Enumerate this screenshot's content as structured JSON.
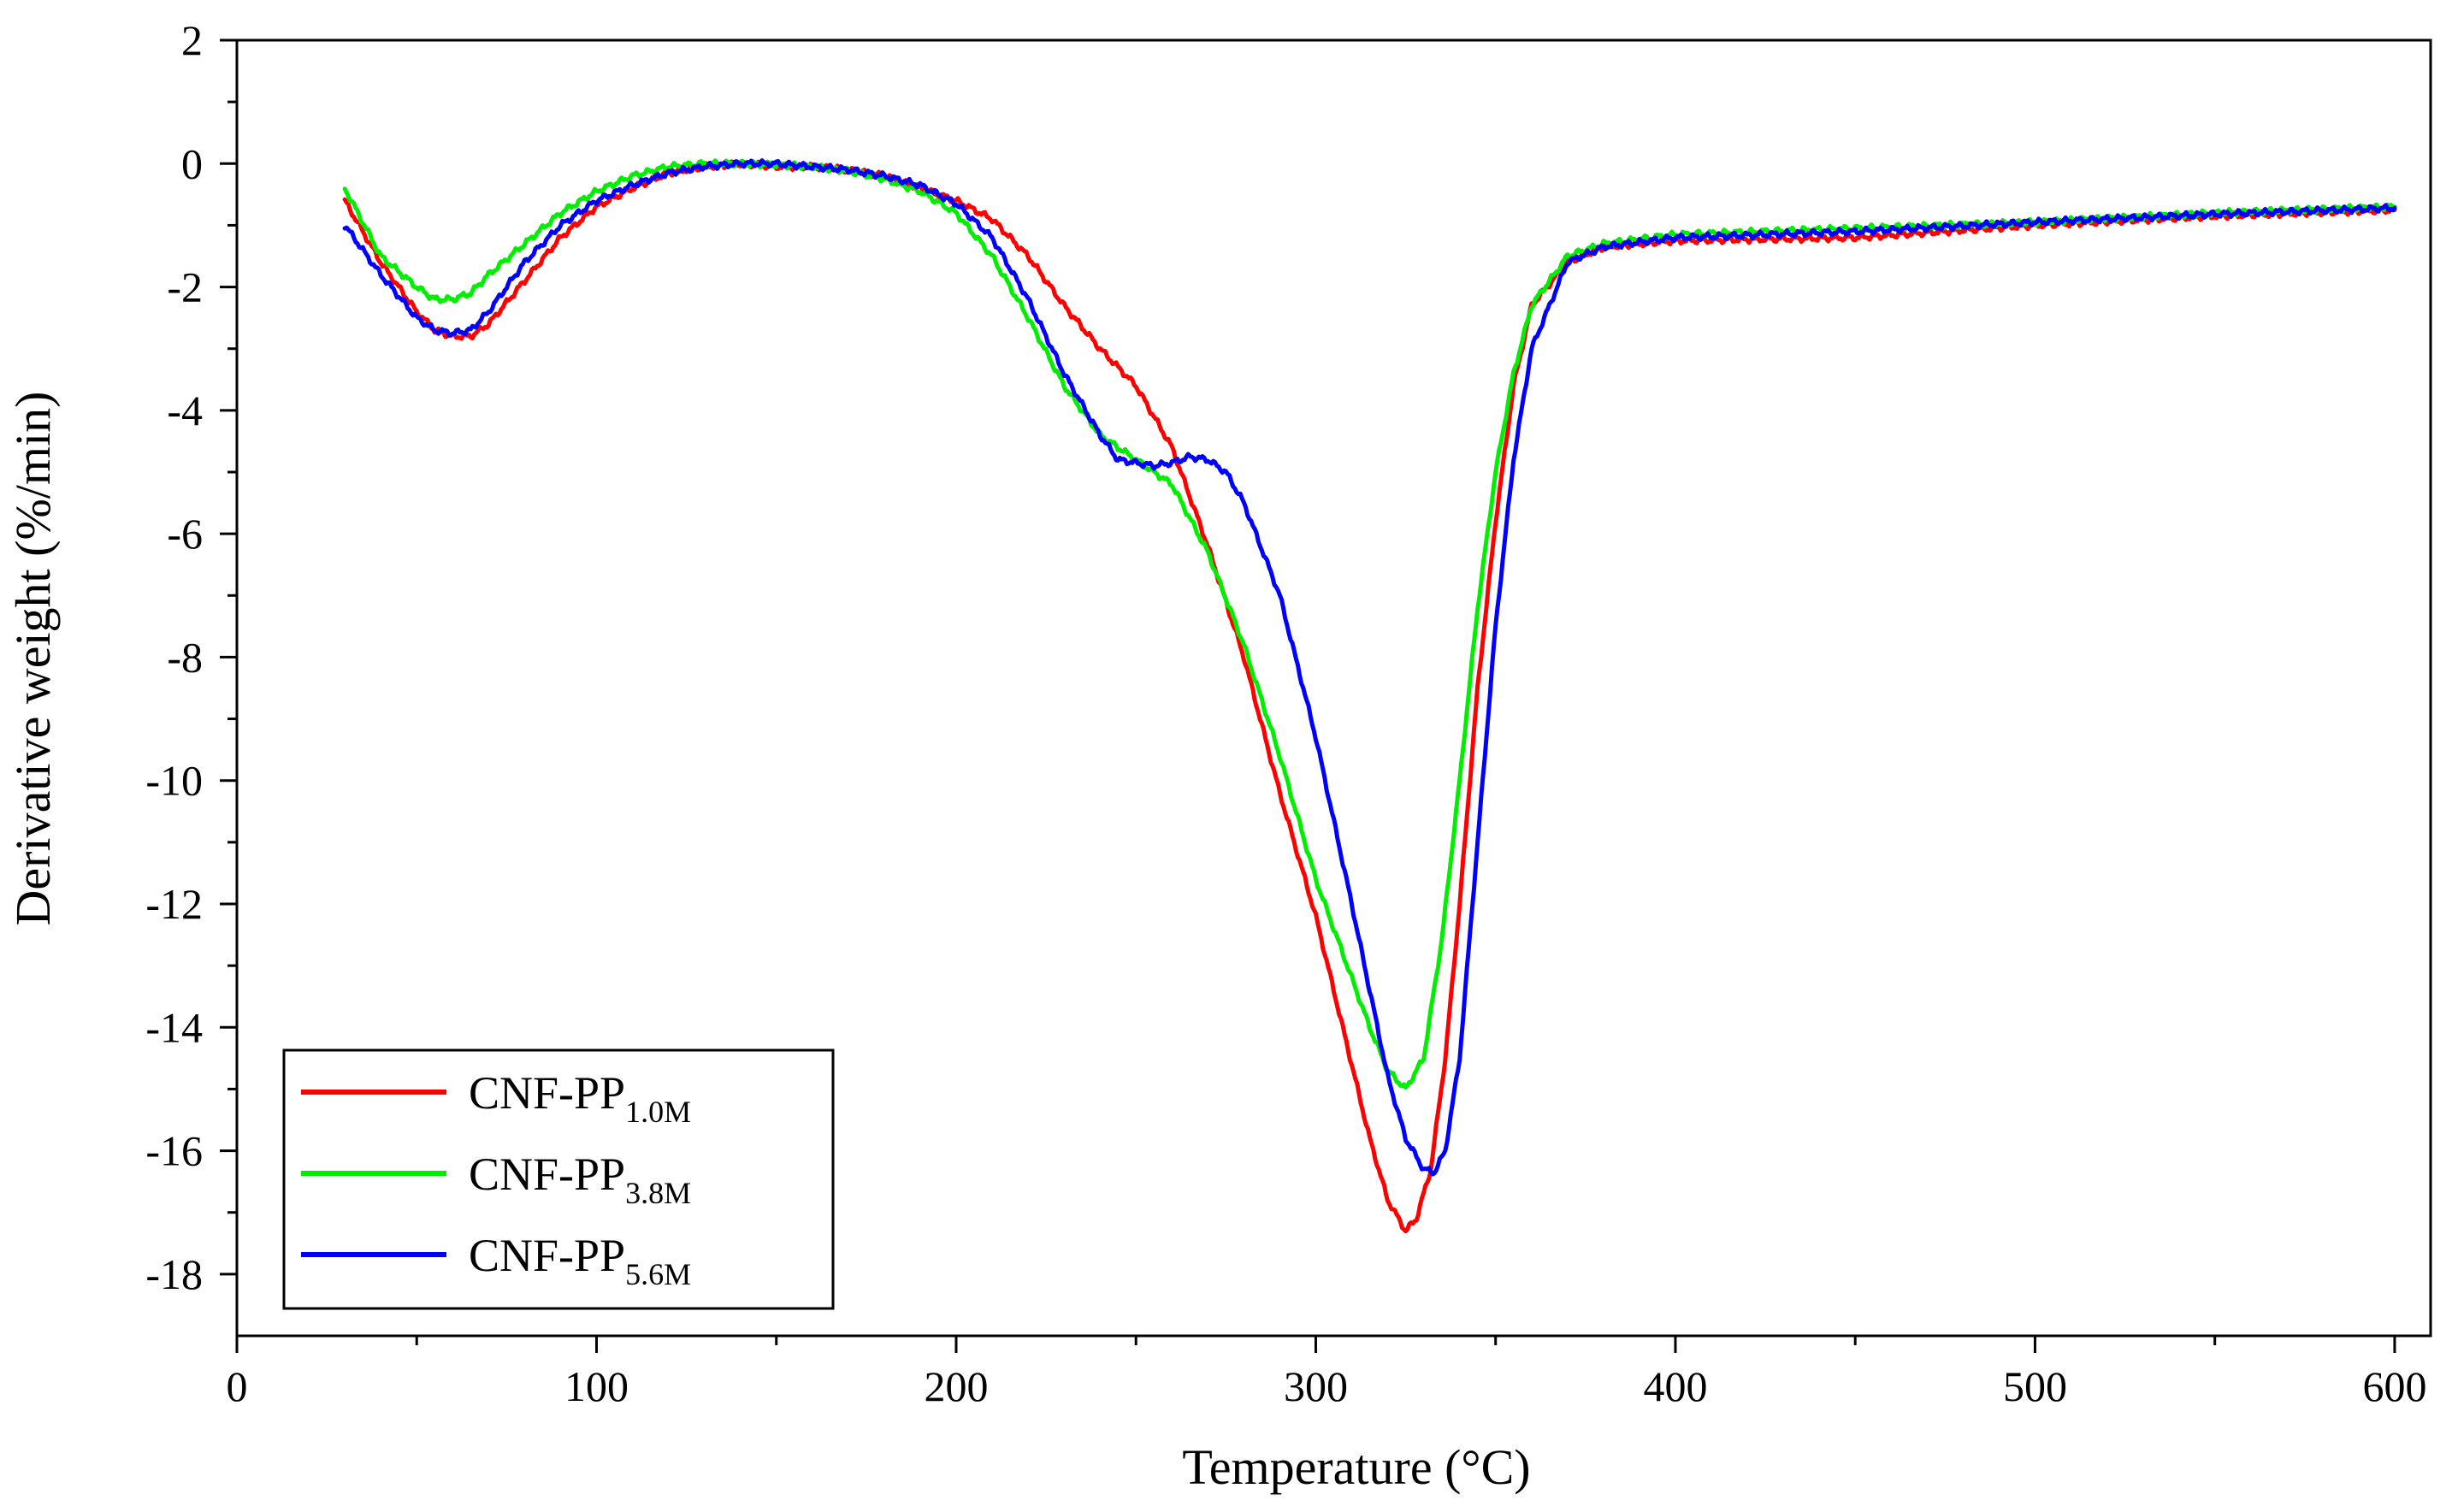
{
  "chart_data": {
    "type": "line",
    "title": "",
    "xlabel": "Temperature (°C)",
    "ylabel": "Derivative weight (%/min)",
    "xlim": [
      0,
      610
    ],
    "ylim": [
      -19,
      2
    ],
    "xticks": [
      0,
      100,
      200,
      300,
      400,
      500,
      600
    ],
    "yticks": [
      2,
      0,
      -2,
      -4,
      -6,
      -8,
      -10,
      -12,
      -14,
      -16,
      -18
    ],
    "grid": false,
    "legend_position": "bottom-left",
    "series": [
      {
        "name": "CNF-PP",
        "subscript": "1.0M",
        "color": "#ff0000",
        "x": [
          30,
          40,
          50,
          55,
          60,
          65,
          70,
          80,
          90,
          100,
          110,
          120,
          130,
          140,
          150,
          160,
          170,
          180,
          190,
          200,
          210,
          220,
          230,
          240,
          250,
          260,
          270,
          280,
          290,
          300,
          310,
          315,
          320,
          325,
          328,
          332,
          336,
          340,
          345,
          350,
          355,
          360,
          370,
          380,
          400,
          450,
          500,
          550,
          600
        ],
        "y": [
          -0.6,
          -1.6,
          -2.4,
          -2.7,
          -2.8,
          -2.8,
          -2.6,
          -1.9,
          -1.2,
          -0.7,
          -0.4,
          -0.15,
          -0.05,
          0,
          -0.05,
          -0.05,
          -0.1,
          -0.2,
          -0.4,
          -0.6,
          -0.9,
          -1.5,
          -2.3,
          -3.0,
          -3.6,
          -4.6,
          -6.2,
          -8.0,
          -10.2,
          -12.2,
          -14.6,
          -15.8,
          -16.8,
          -17.3,
          -17.1,
          -16.3,
          -14.5,
          -12.0,
          -8.5,
          -5.8,
          -3.6,
          -2.3,
          -1.6,
          -1.35,
          -1.25,
          -1.2,
          -1.0,
          -0.85,
          -0.75
        ]
      },
      {
        "name": "CNF-PP",
        "subscript": "3.8M",
        "color": "#00ee00",
        "x": [
          30,
          40,
          50,
          55,
          60,
          65,
          70,
          80,
          90,
          100,
          110,
          120,
          130,
          140,
          150,
          160,
          170,
          180,
          190,
          200,
          210,
          220,
          230,
          240,
          250,
          260,
          270,
          280,
          290,
          300,
          310,
          315,
          320,
          325,
          330,
          335,
          340,
          345,
          350,
          355,
          360,
          370,
          380,
          400,
          450,
          500,
          550,
          600
        ],
        "y": [
          -0.4,
          -1.5,
          -2.0,
          -2.2,
          -2.2,
          -2.1,
          -1.8,
          -1.3,
          -0.8,
          -0.45,
          -0.2,
          -0.05,
          0,
          0,
          -0.02,
          -0.05,
          -0.12,
          -0.25,
          -0.45,
          -0.8,
          -1.5,
          -2.5,
          -3.6,
          -4.4,
          -4.8,
          -5.2,
          -6.3,
          -7.8,
          -9.6,
          -11.6,
          -13.2,
          -14.0,
          -14.7,
          -15.0,
          -14.5,
          -12.6,
          -10.0,
          -7.2,
          -5.0,
          -3.4,
          -2.3,
          -1.5,
          -1.3,
          -1.15,
          -1.05,
          -0.95,
          -0.8,
          -0.7
        ]
      },
      {
        "name": "CNF-PP",
        "subscript": "5.6M",
        "color": "#0000ff",
        "x": [
          30,
          40,
          50,
          55,
          60,
          65,
          70,
          80,
          90,
          100,
          110,
          120,
          130,
          140,
          150,
          160,
          170,
          180,
          190,
          200,
          210,
          220,
          230,
          240,
          245,
          250,
          255,
          260,
          265,
          270,
          275,
          280,
          290,
          300,
          310,
          320,
          325,
          330,
          333,
          336,
          340,
          345,
          350,
          355,
          360,
          370,
          380,
          400,
          450,
          500,
          550,
          600
        ],
        "y": [
          -1.0,
          -1.8,
          -2.5,
          -2.7,
          -2.75,
          -2.7,
          -2.4,
          -1.6,
          -1.0,
          -0.6,
          -0.35,
          -0.15,
          -0.05,
          0,
          0,
          -0.05,
          -0.1,
          -0.2,
          -0.35,
          -0.65,
          -1.2,
          -2.2,
          -3.4,
          -4.4,
          -4.8,
          -4.85,
          -4.9,
          -4.85,
          -4.75,
          -4.8,
          -5.0,
          -5.5,
          -7.0,
          -9.3,
          -12.0,
          -14.8,
          -15.8,
          -16.3,
          -16.35,
          -16.0,
          -14.5,
          -11.0,
          -7.5,
          -4.8,
          -3.0,
          -1.6,
          -1.35,
          -1.2,
          -1.1,
          -0.95,
          -0.82,
          -0.72
        ]
      }
    ]
  }
}
